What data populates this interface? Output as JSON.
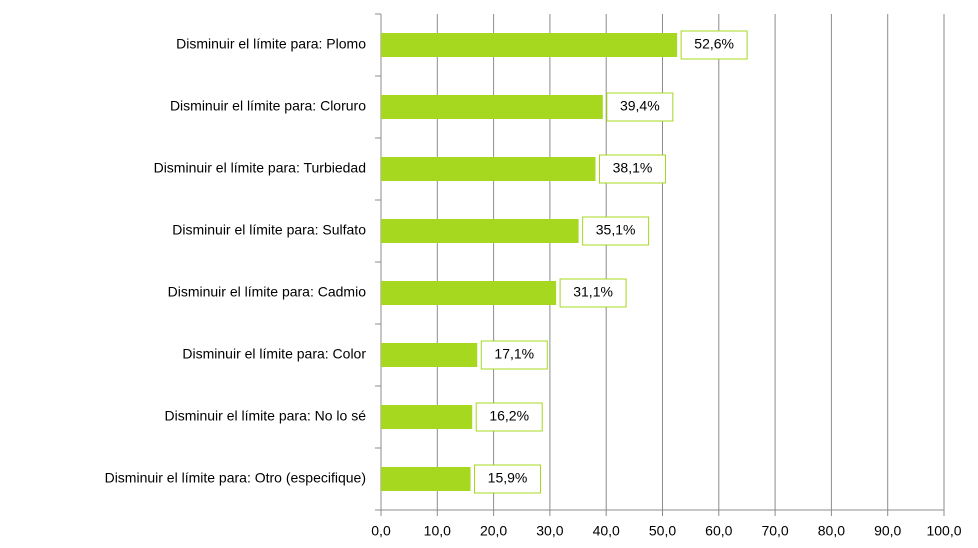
{
  "chart_data": {
    "type": "bar",
    "orientation": "horizontal",
    "color": "#a5d81f",
    "categories": [
      "Disminuir el límite para: Plomo",
      "Disminuir el límite para: Cloruro",
      "Disminuir el límite para: Turbiedad",
      "Disminuir el límite para: Sulfato",
      "Disminuir el límite para: Cadmio",
      "Disminuir el límite para: Color",
      "Disminuir el límite para: No lo sé",
      "Disminuir el límite para: Otro (especifique)"
    ],
    "values": [
      52.6,
      39.4,
      38.1,
      35.1,
      31.1,
      17.1,
      16.2,
      15.9
    ],
    "value_labels": [
      "52,6%",
      "39,4%",
      "38,1%",
      "35,1%",
      "31,1%",
      "17,1%",
      "16,2%",
      "15,9%"
    ],
    "xlim": [
      0,
      100
    ],
    "xticks": [
      {
        "value": 0,
        "label": "0,0"
      },
      {
        "value": 10,
        "label": "10,0"
      },
      {
        "value": 20,
        "label": "20,0"
      },
      {
        "value": 30,
        "label": "30,0"
      },
      {
        "value": 40,
        "label": "40,0"
      },
      {
        "value": 50,
        "label": "50,0"
      },
      {
        "value": 60,
        "label": "60,0"
      },
      {
        "value": 70,
        "label": "70,0"
      },
      {
        "value": 80,
        "label": "80,0"
      },
      {
        "value": 90,
        "label": "90,0"
      },
      {
        "value": 100,
        "label": "100,0"
      }
    ],
    "grid": true
  }
}
